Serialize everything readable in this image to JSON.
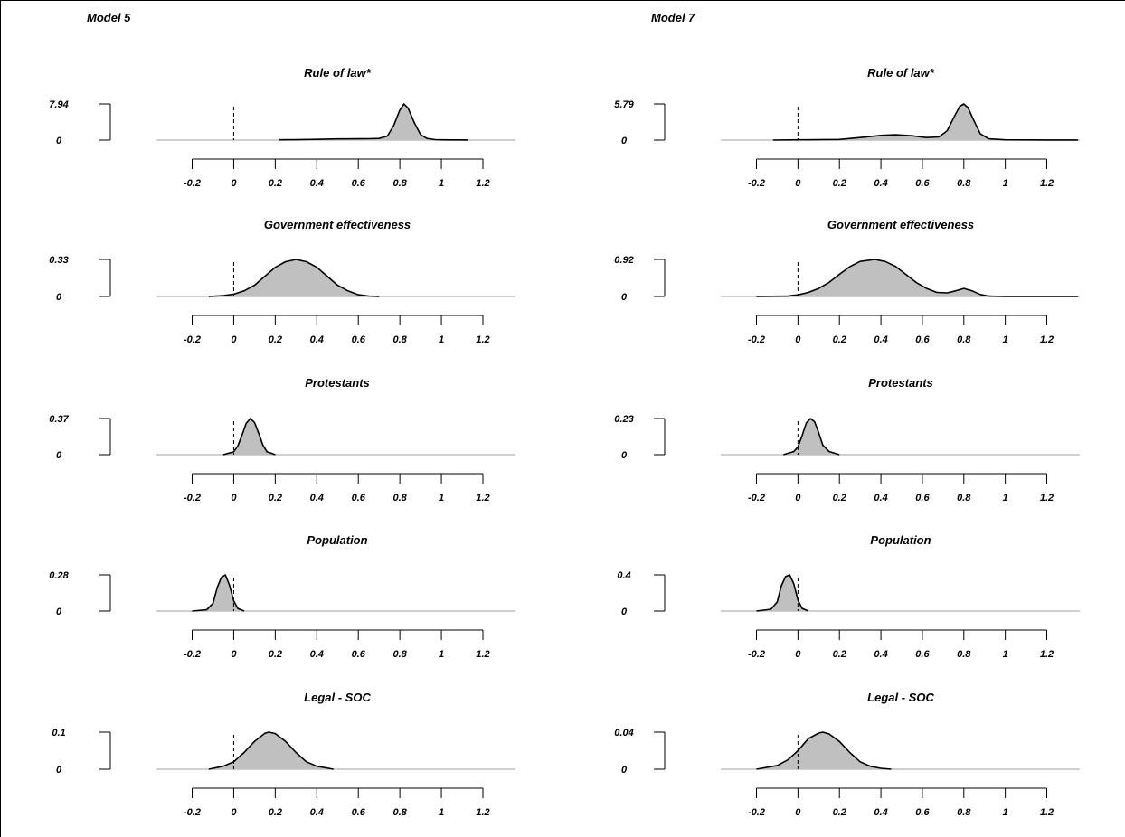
{
  "models": [
    {
      "label": "Model 5"
    },
    {
      "label": "Model 7"
    }
  ],
  "x_tick_labels": [
    "-0.2",
    "0",
    "0.2",
    "0.4",
    "0.6",
    "0.8",
    "1",
    "1.2"
  ],
  "colors": {
    "fill": "#c0c0c0",
    "line": "#000000",
    "baseline": "#b4b4b4"
  },
  "chart_data": [
    {
      "type": "area",
      "model": "Model 5",
      "title": "Rule of law*",
      "y_tick_labels": [
        "0",
        "7.94"
      ],
      "ylim": [
        0,
        7.94
      ],
      "xlim": [
        -0.2,
        1.2
      ],
      "x": [
        0.22,
        0.3,
        0.4,
        0.5,
        0.6,
        0.65,
        0.7,
        0.74,
        0.77,
        0.8,
        0.82,
        0.84,
        0.87,
        0.9,
        0.93,
        0.97,
        1.0,
        1.05,
        1.13
      ],
      "y": [
        0.05,
        0.08,
        0.15,
        0.25,
        0.28,
        0.3,
        0.35,
        0.9,
        3.2,
        6.6,
        7.94,
        7.0,
        3.8,
        1.2,
        0.35,
        0.1,
        0.06,
        0.04,
        0.02
      ]
    },
    {
      "type": "area",
      "model": "Model 5",
      "title": "Government effectiveness",
      "y_tick_labels": [
        "0",
        "0.33"
      ],
      "ylim": [
        0,
        0.33
      ],
      "xlim": [
        -0.2,
        1.2
      ],
      "x": [
        -0.12,
        -0.05,
        0.0,
        0.05,
        0.1,
        0.15,
        0.2,
        0.25,
        0.3,
        0.35,
        0.4,
        0.45,
        0.5,
        0.55,
        0.6,
        0.65,
        0.7
      ],
      "y": [
        0.0,
        0.008,
        0.02,
        0.05,
        0.1,
        0.18,
        0.26,
        0.31,
        0.33,
        0.31,
        0.26,
        0.18,
        0.1,
        0.05,
        0.015,
        0.004,
        0.0
      ]
    },
    {
      "type": "area",
      "model": "Model 5",
      "title": "Protestants",
      "y_tick_labels": [
        "0",
        "0.37"
      ],
      "ylim": [
        0,
        0.37
      ],
      "xlim": [
        -0.2,
        1.2
      ],
      "x": [
        -0.05,
        0.0,
        0.02,
        0.04,
        0.06,
        0.08,
        0.1,
        0.12,
        0.14,
        0.16,
        0.2
      ],
      "y": [
        0.0,
        0.03,
        0.09,
        0.2,
        0.32,
        0.37,
        0.33,
        0.22,
        0.1,
        0.03,
        0.0
      ]
    },
    {
      "type": "area",
      "model": "Model 5",
      "title": "Population",
      "y_tick_labels": [
        "0",
        "0.28"
      ],
      "ylim": [
        0,
        0.28
      ],
      "xlim": [
        -0.2,
        1.2
      ],
      "x": [
        -0.2,
        -0.13,
        -0.1,
        -0.08,
        -0.06,
        -0.04,
        -0.02,
        0.0,
        0.02,
        0.05
      ],
      "y": [
        0.0,
        0.01,
        0.06,
        0.18,
        0.26,
        0.28,
        0.2,
        0.08,
        0.02,
        0.0
      ]
    },
    {
      "type": "area",
      "model": "Model 5",
      "title": "Legal - SOC",
      "y_tick_labels": [
        "0",
        "0.1"
      ],
      "ylim": [
        0,
        0.1
      ],
      "xlim": [
        -0.2,
        1.2
      ],
      "x": [
        -0.12,
        -0.05,
        0.0,
        0.05,
        0.1,
        0.15,
        0.17,
        0.2,
        0.25,
        0.3,
        0.35,
        0.4,
        0.48
      ],
      "y": [
        0.0,
        0.008,
        0.02,
        0.045,
        0.075,
        0.097,
        0.1,
        0.096,
        0.075,
        0.045,
        0.02,
        0.008,
        0.0
      ]
    },
    {
      "type": "area",
      "model": "Model 7",
      "title": "Rule of law*",
      "y_tick_labels": [
        "0",
        "5.79"
      ],
      "ylim": [
        0,
        5.79
      ],
      "xlim": [
        -0.2,
        1.2
      ],
      "x": [
        -0.12,
        0.0,
        0.2,
        0.3,
        0.4,
        0.47,
        0.55,
        0.62,
        0.68,
        0.72,
        0.75,
        0.78,
        0.8,
        0.82,
        0.85,
        0.88,
        0.92,
        1.0,
        1.2,
        1.35
      ],
      "y": [
        0.0,
        0.04,
        0.1,
        0.4,
        0.75,
        0.85,
        0.7,
        0.4,
        0.5,
        1.5,
        3.5,
        5.4,
        5.79,
        5.2,
        3.0,
        1.0,
        0.2,
        0.05,
        0.02,
        0.02
      ]
    },
    {
      "type": "area",
      "model": "Model 7",
      "title": "Government effectiveness",
      "y_tick_labels": [
        "0",
        "0.92"
      ],
      "ylim": [
        0,
        0.92
      ],
      "xlim": [
        -0.2,
        1.2
      ],
      "x": [
        -0.2,
        -0.05,
        0.0,
        0.05,
        0.1,
        0.15,
        0.2,
        0.25,
        0.3,
        0.37,
        0.42,
        0.47,
        0.52,
        0.57,
        0.62,
        0.67,
        0.72,
        0.76,
        0.8,
        0.84,
        0.88,
        0.92,
        1.0,
        1.35
      ],
      "y": [
        0.0,
        0.01,
        0.04,
        0.1,
        0.2,
        0.35,
        0.55,
        0.74,
        0.87,
        0.92,
        0.87,
        0.75,
        0.55,
        0.35,
        0.2,
        0.1,
        0.09,
        0.14,
        0.2,
        0.14,
        0.05,
        0.01,
        0.0,
        0.0
      ]
    },
    {
      "type": "area",
      "model": "Model 7",
      "title": "Protestants",
      "y_tick_labels": [
        "0",
        "0.23"
      ],
      "ylim": [
        0,
        0.23
      ],
      "xlim": [
        -0.2,
        1.2
      ],
      "x": [
        -0.07,
        -0.02,
        0.0,
        0.02,
        0.04,
        0.06,
        0.08,
        0.1,
        0.12,
        0.15,
        0.2
      ],
      "y": [
        0.0,
        0.02,
        0.05,
        0.12,
        0.2,
        0.23,
        0.21,
        0.14,
        0.06,
        0.02,
        0.0
      ]
    },
    {
      "type": "area",
      "model": "Model 7",
      "title": "Population",
      "y_tick_labels": [
        "0",
        "0.4"
      ],
      "ylim": [
        0,
        0.4
      ],
      "xlim": [
        -0.2,
        1.2
      ],
      "x": [
        -0.2,
        -0.13,
        -0.1,
        -0.08,
        -0.06,
        -0.04,
        -0.02,
        0.0,
        0.02,
        0.05
      ],
      "y": [
        0.0,
        0.02,
        0.1,
        0.28,
        0.38,
        0.4,
        0.3,
        0.12,
        0.03,
        0.0
      ]
    },
    {
      "type": "area",
      "model": "Model 7",
      "title": "Legal - SOC",
      "y_tick_labels": [
        "0",
        "0.04"
      ],
      "ylim": [
        0,
        0.04
      ],
      "xlim": [
        -0.2,
        1.2
      ],
      "x": [
        -0.2,
        -0.1,
        -0.05,
        0.0,
        0.05,
        0.1,
        0.12,
        0.15,
        0.2,
        0.25,
        0.3,
        0.35,
        0.4,
        0.45
      ],
      "y": [
        0.0,
        0.004,
        0.01,
        0.02,
        0.033,
        0.039,
        0.04,
        0.038,
        0.03,
        0.018,
        0.008,
        0.003,
        0.001,
        0.0
      ]
    }
  ]
}
